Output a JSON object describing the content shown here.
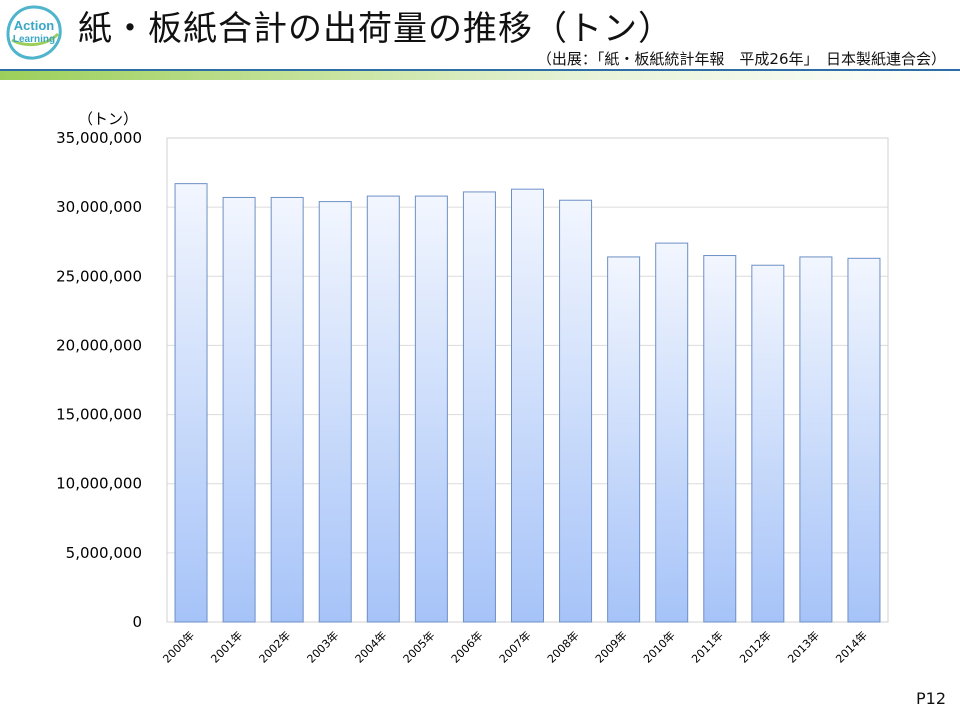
{
  "header": {
    "title": "紙・板紙合計の出荷量の推移（トン）",
    "source": "（出展：「紙・板紙統計年報　平成26年」　日本製紙連合会）",
    "logo_line1": "Action",
    "logo_line2": "Learning"
  },
  "footer": {
    "page": "P12"
  },
  "colors": {
    "accent_green": "#9ccf5a",
    "rule_blue": "#2e6ea6",
    "bar_top": "#f2f6fe",
    "bar_bottom": "#a6c3f8",
    "bar_stroke": "#6d8fc4"
  },
  "chart_data": {
    "type": "bar",
    "unit_label": "（トン）",
    "categories": [
      "2000年",
      "2001年",
      "2002年",
      "2003年",
      "2004年",
      "2005年",
      "2006年",
      "2007年",
      "2008年",
      "2009年",
      "2010年",
      "2011年",
      "2012年",
      "2013年",
      "2014年"
    ],
    "values": [
      31700000,
      30700000,
      30700000,
      30400000,
      30800000,
      30800000,
      31100000,
      31300000,
      30500000,
      26400000,
      27400000,
      26500000,
      25800000,
      26400000,
      26300000
    ],
    "yticks": [
      0,
      5000000,
      10000000,
      15000000,
      20000000,
      25000000,
      30000000,
      35000000
    ],
    "ytick_labels": [
      "0",
      "5,000,000",
      "10,000,000",
      "15,000,000",
      "20,000,000",
      "25,000,000",
      "30,000,000",
      "35,000,000"
    ],
    "ylim": [
      0,
      35000000
    ],
    "grid": true,
    "legend": "none"
  }
}
